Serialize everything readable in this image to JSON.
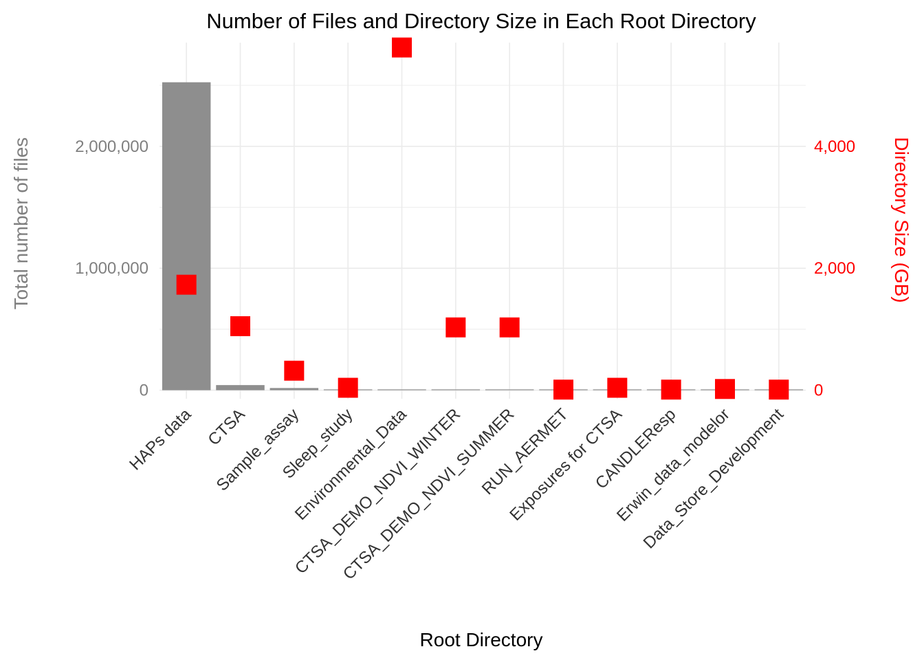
{
  "chart_data": {
    "type": "bar",
    "title": "Number of Files and Directory Size in Each Root Directory",
    "xlabel": "Root Directory",
    "ylabel": "Total number of files",
    "y2label": "Directory Size (GB)",
    "categories": [
      "HAPs data",
      "CTSA",
      "Sample_assay",
      "Sleep_study",
      "Environmental_Data",
      "CTSA_DEMO_NDVI_WINTER",
      "CTSA_DEMO_NDVI_SUMMER",
      "RUN_AERMET",
      "Exposures for CTSA",
      "CANDLEResp",
      "Erwin_data_modelor",
      "Data_Store_Development"
    ],
    "series": [
      {
        "axis": "left",
        "type": "bar",
        "values": [
          2525000,
          42000,
          18000,
          5000,
          2000,
          2000,
          2000,
          500,
          500,
          300,
          300,
          300
        ]
      },
      {
        "axis": "right",
        "type": "point",
        "marker": "square",
        "values": [
          1730,
          1050,
          320,
          40,
          5620,
          1030,
          1030,
          10,
          40,
          10,
          20,
          10
        ]
      }
    ],
    "ylim": [
      -70000,
      2850000
    ],
    "y2lim": [
      -140,
      5700
    ],
    "yticks": [
      0,
      1000000,
      2000000
    ],
    "yticklabels": [
      "0",
      "1,000,000",
      "2,000,000"
    ],
    "y2ticks": [
      0,
      2000,
      4000
    ],
    "y2ticklabels": [
      "0",
      "2,000",
      "4,000"
    ],
    "grid": true,
    "legend": "none",
    "colors": {
      "bars": "#8e8e8e",
      "points": "#ff0000",
      "left_axis": "#808080",
      "right_axis": "#ff0000",
      "grid": "#ebebeb",
      "x_ticks": "#333333"
    }
  }
}
